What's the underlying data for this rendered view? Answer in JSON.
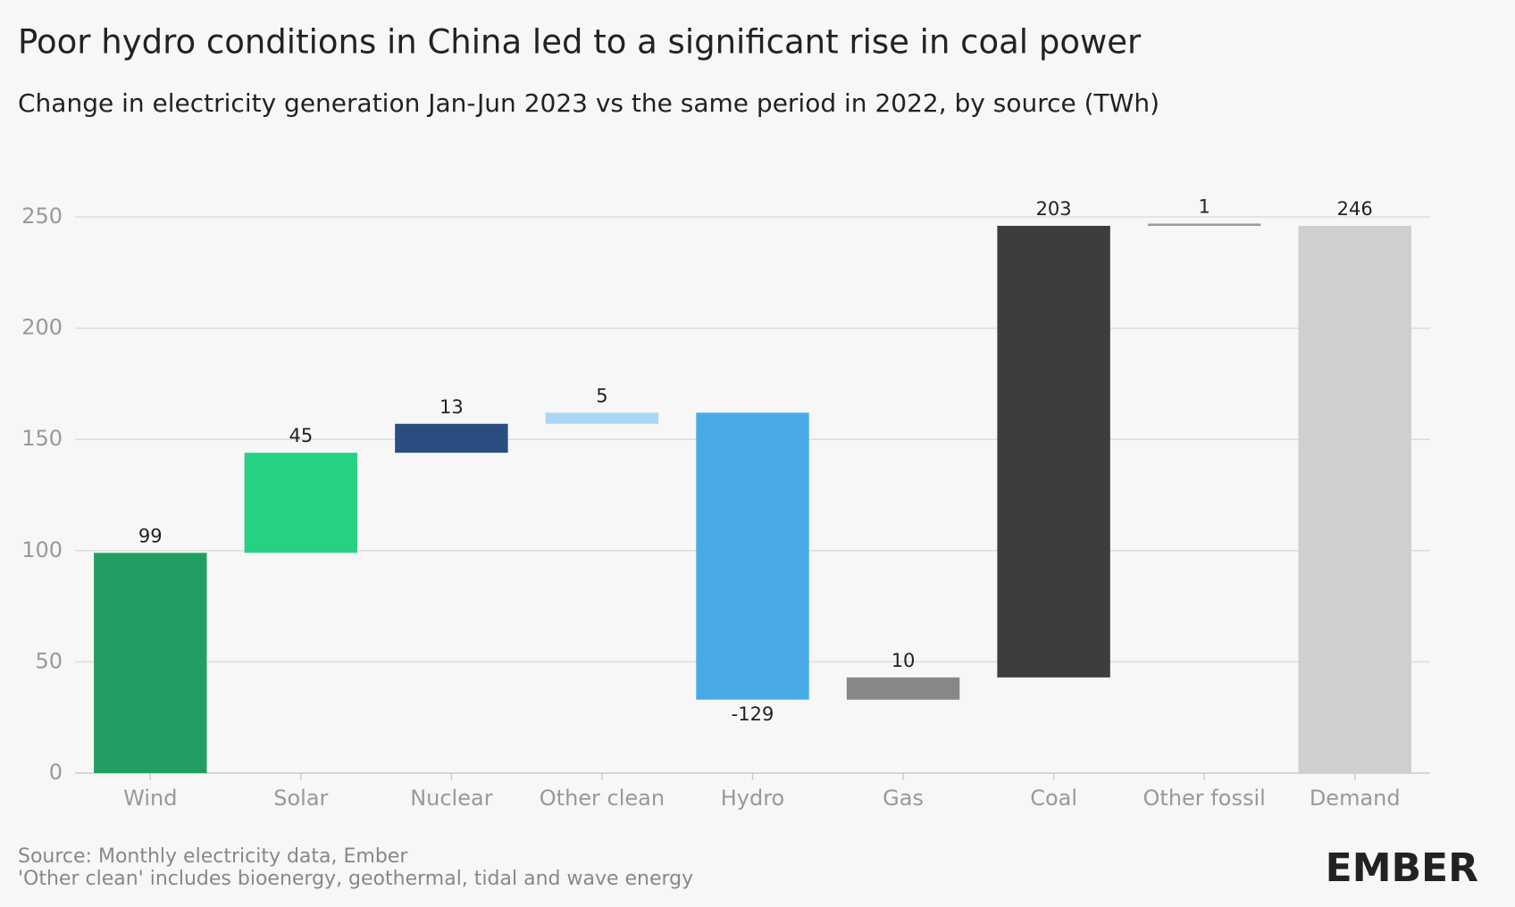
{
  "chart_data": {
    "type": "waterfall",
    "title": "Poor hydro conditions in China led to a significant rise in coal power",
    "subtitle": "Change in electricity generation Jan-Jun 2023 vs the same period in 2022, by source (TWh)",
    "categories": [
      "Wind",
      "Solar",
      "Nuclear",
      "Other clean",
      "Hydro",
      "Gas",
      "Coal",
      "Other fossil",
      "Demand"
    ],
    "values": [
      99,
      45,
      13,
      5,
      -129,
      10,
      203,
      1,
      246
    ],
    "colors": [
      "#219f62",
      "#27d184",
      "#2b4c7e",
      "#a9d6f5",
      "#48abe6",
      "#878787",
      "#3d3d3d",
      "#9a9a9a",
      "#cfcfcf"
    ],
    "last_is_total": true,
    "ylim": [
      0,
      250
    ],
    "yticks": [
      0,
      50,
      100,
      150,
      200,
      250
    ],
    "grid": true,
    "notes": [
      "Source: Monthly electricity data, Ember",
      "'Other clean' includes bioenergy, geothermal, tidal and wave energy"
    ],
    "logo": "EMBER"
  }
}
